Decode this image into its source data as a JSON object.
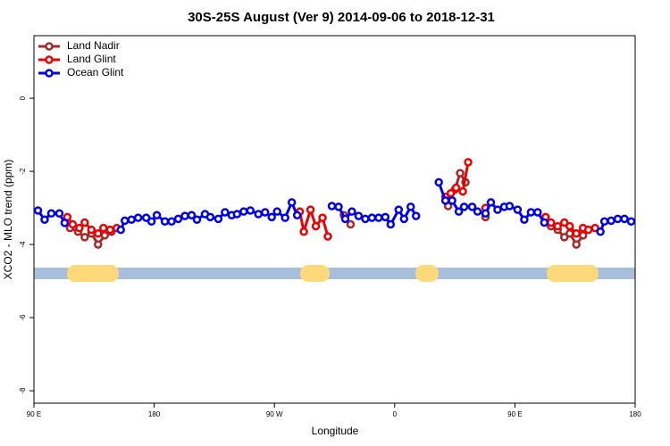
{
  "chart_data": {
    "type": "line",
    "title": "30S-25S August (Ver 9)   2014-09-06 to 2018-12-31",
    "x_label": "Longitude",
    "y_label": "XCO2 - MLO trend (ppm)",
    "xlim": [
      90,
      540
    ],
    "ylim": [
      -8.34,
      1.71
    ],
    "xticks": [
      {
        "value": 90,
        "label": "90 E"
      },
      {
        "value": 180,
        "label": "180"
      },
      {
        "value": 270,
        "label": "90 W"
      },
      {
        "value": 360,
        "label": "0"
      },
      {
        "value": 450,
        "label": "90 E"
      },
      {
        "value": 540,
        "label": "180"
      }
    ],
    "yticks": [
      -8,
      -6,
      -4,
      -2,
      0
    ],
    "legend": "top-left",
    "series": [
      {
        "name": "Land Nadir",
        "color": "#a52a2a",
        "x": [
          117,
          123,
          128,
          133,
          138,
          143,
          148,
          null,
          322,
          327,
          null,
          400,
          405,
          409,
          413,
          null,
          428,
          null,
          477,
          482,
          487,
          491,
          496,
          501
        ],
        "values": [
          -3.55,
          -3.65,
          -3.8,
          -3.7,
          -4.0,
          -3.75,
          -3.65,
          null,
          -3.2,
          -3.45,
          null,
          -2.95,
          -2.5,
          -2.05,
          -2.3,
          null,
          -3.25,
          null,
          -3.5,
          -3.6,
          -3.8,
          -3.7,
          -4.0,
          -3.75
        ]
      },
      {
        "name": "Land Glint",
        "color": "#ee0000",
        "x": [
          115,
          119,
          124,
          128,
          133,
          138,
          142,
          147,
          152,
          null,
          289,
          292,
          297,
          301,
          306,
          310,
          null,
          398,
          402,
          406,
          411,
          415,
          null,
          428,
          null,
          473,
          477,
          482,
          487,
          491,
          496,
          501,
          505,
          510
        ],
        "values": [
          -3.25,
          -3.45,
          -3.55,
          -3.4,
          -3.6,
          -3.7,
          -3.55,
          -3.6,
          -3.55,
          null,
          -3.1,
          -3.65,
          -3.05,
          -3.5,
          -3.27,
          -3.78,
          null,
          -2.7,
          -2.6,
          -2.45,
          -2.55,
          -1.75,
          null,
          -3.0,
          null,
          -3.25,
          -3.4,
          -3.5,
          -3.4,
          -3.5,
          -3.7,
          -3.55,
          -3.6,
          -3.55
        ]
      },
      {
        "name": "Ocean Glint",
        "color": "#0000ee",
        "x": [
          93,
          98,
          103,
          109,
          113,
          null,
          155,
          158,
          163,
          168,
          174,
          178,
          182,
          188,
          193,
          198,
          203,
          208,
          212,
          218,
          222,
          228,
          233,
          238,
          242,
          247,
          252,
          258,
          263,
          268,
          272,
          278,
          283,
          287,
          null,
          313,
          318,
          323,
          328,
          333,
          338,
          343,
          348,
          353,
          357,
          363,
          367,
          372,
          376,
          null,
          393,
          398,
          403,
          408,
          412,
          418,
          422,
          428,
          432,
          437,
          442,
          446,
          452,
          457,
          462,
          467,
          472,
          null,
          514,
          517,
          522,
          527,
          532,
          537
        ],
        "values": [
          -3.07,
          -3.32,
          -3.15,
          -3.15,
          -3.41,
          null,
          -3.6,
          -3.35,
          -3.32,
          -3.27,
          -3.27,
          -3.37,
          -3.2,
          -3.37,
          -3.37,
          -3.3,
          -3.22,
          -3.2,
          -3.32,
          -3.17,
          -3.25,
          -3.3,
          -3.12,
          -3.2,
          -3.17,
          -3.1,
          -3.07,
          -3.17,
          -3.12,
          -3.25,
          -3.1,
          -3.27,
          -2.85,
          -3.2,
          null,
          -2.95,
          -2.97,
          -3.3,
          -3.1,
          -3.22,
          -3.3,
          -3.27,
          -3.27,
          -3.25,
          -3.45,
          -3.05,
          -3.3,
          -2.97,
          -3.22,
          null,
          -2.3,
          -2.8,
          -2.8,
          -3.1,
          -2.97,
          -2.97,
          -3.1,
          -3.15,
          -2.85,
          -3.05,
          -2.97,
          -2.95,
          -3.05,
          -3.32,
          -3.12,
          -3.12,
          -3.4,
          null,
          -3.65,
          -3.37,
          -3.35,
          -3.3,
          -3.3,
          -3.37
        ]
      }
    ]
  }
}
